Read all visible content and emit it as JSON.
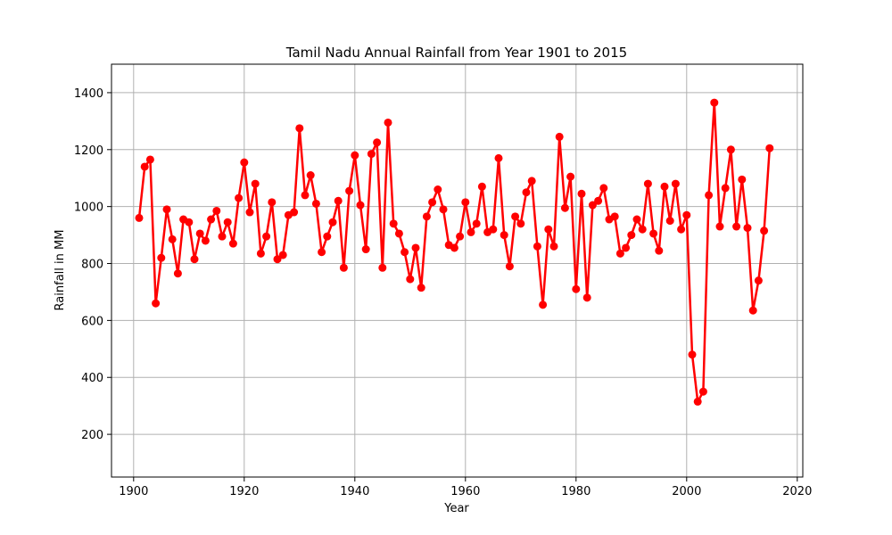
{
  "chart_data": {
    "type": "line",
    "title": "Tamil Nadu Annual Rainfall from Year 1901 to 2015",
    "xlabel": "Year",
    "ylabel": "Rainfall in MM",
    "xlim": [
      1896,
      2021
    ],
    "ylim": [
      50,
      1500
    ],
    "xticks": [
      1900,
      1920,
      1940,
      1960,
      1980,
      2000,
      2020
    ],
    "yticks": [
      200,
      400,
      600,
      800,
      1000,
      1200,
      1400
    ],
    "grid": true,
    "color": "#ff0000",
    "marker": "circle",
    "x": [
      1901,
      1902,
      1903,
      1904,
      1905,
      1906,
      1907,
      1908,
      1909,
      1910,
      1911,
      1912,
      1913,
      1914,
      1915,
      1916,
      1917,
      1918,
      1919,
      1920,
      1921,
      1922,
      1923,
      1924,
      1925,
      1926,
      1927,
      1928,
      1929,
      1930,
      1931,
      1932,
      1933,
      1934,
      1935,
      1936,
      1937,
      1938,
      1939,
      1940,
      1941,
      1942,
      1943,
      1944,
      1945,
      1946,
      1947,
      1948,
      1949,
      1950,
      1951,
      1952,
      1953,
      1954,
      1955,
      1956,
      1957,
      1958,
      1959,
      1960,
      1961,
      1962,
      1963,
      1964,
      1965,
      1966,
      1967,
      1968,
      1969,
      1970,
      1971,
      1972,
      1973,
      1974,
      1975,
      1976,
      1977,
      1978,
      1979,
      1980,
      1981,
      1982,
      1983,
      1984,
      1985,
      1986,
      1987,
      1988,
      1989,
      1990,
      1991,
      1992,
      1993,
      1994,
      1995,
      1996,
      1997,
      1998,
      1999,
      2000,
      2001,
      2002,
      2003,
      2004,
      2005,
      2006,
      2007,
      2008,
      2009,
      2010,
      2011,
      2012,
      2013,
      2014,
      2015
    ],
    "y": [
      960,
      1140,
      1165,
      660,
      820,
      990,
      885,
      765,
      955,
      945,
      815,
      905,
      880,
      955,
      985,
      895,
      945,
      870,
      1030,
      1155,
      980,
      1080,
      835,
      895,
      1015,
      815,
      830,
      970,
      980,
      1275,
      1040,
      1110,
      1010,
      840,
      895,
      945,
      1020,
      785,
      1055,
      1180,
      1005,
      850,
      1185,
      1225,
      785,
      1295,
      940,
      905,
      840,
      745,
      855,
      715,
      965,
      1015,
      1060,
      990,
      865,
      855,
      895,
      1015,
      910,
      940,
      1070,
      910,
      920,
      1170,
      900,
      790,
      965,
      940,
      1050,
      1090,
      860,
      655,
      920,
      860,
      1245,
      995,
      1105,
      710,
      1045,
      680,
      1005,
      1020,
      1065,
      955,
      965,
      835,
      855,
      900,
      955,
      920,
      1080,
      905,
      845,
      1070,
      950,
      1080,
      920,
      970,
      480,
      315,
      350,
      1040,
      1365,
      930,
      1065,
      1200,
      930,
      1095,
      925,
      635,
      740,
      915,
      1205
    ]
  }
}
